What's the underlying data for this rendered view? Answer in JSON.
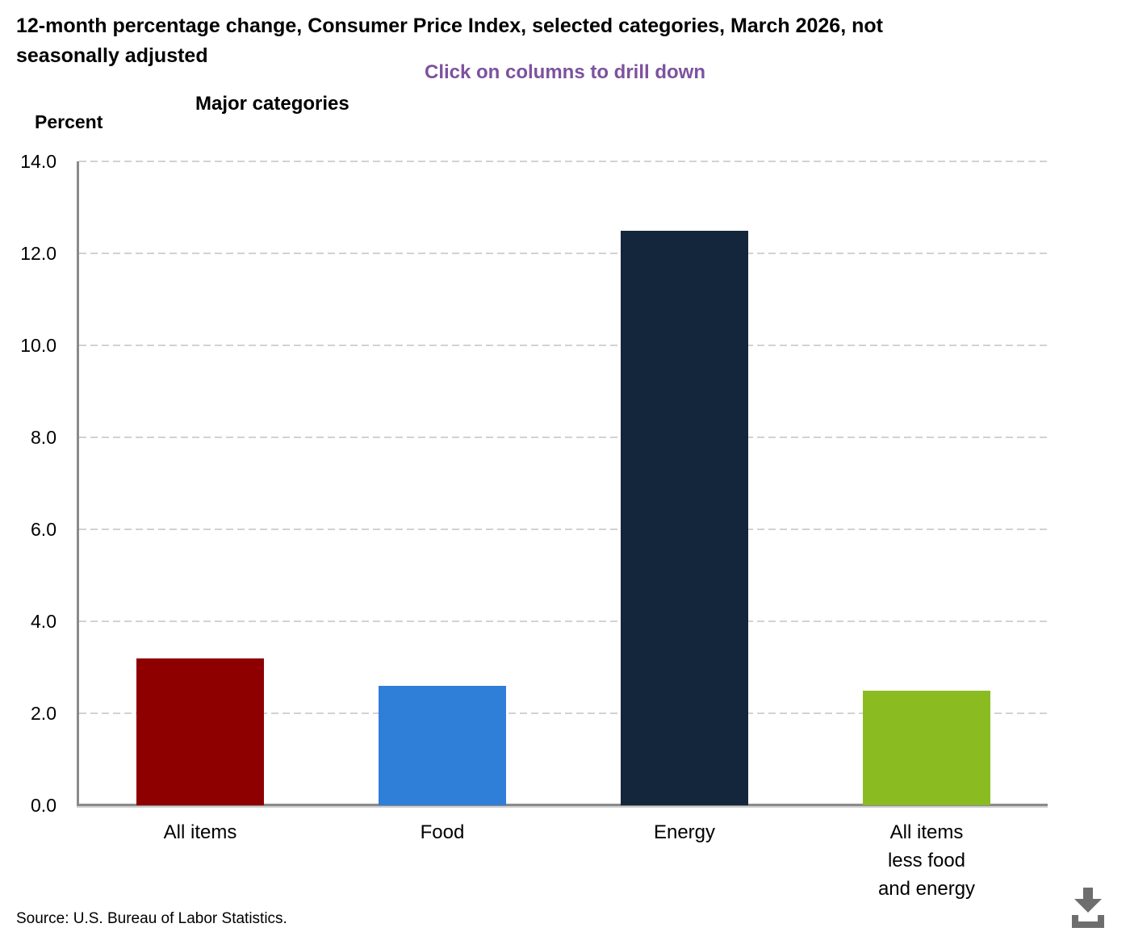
{
  "header": {
    "title_line1": "12-month percentage change, Consumer Price Index, selected categories, March 2026, not",
    "title_line2": "seasonally adjusted",
    "subtitle": "Click on columns to drill down",
    "group_title": "Major categories",
    "yaxis_title": "Percent"
  },
  "footer": {
    "source": "Source: U.S. Bureau of Labor Statistics."
  },
  "icons": {
    "download": "download-arrow-into-tray"
  },
  "colors": {
    "subtitle_text": "#7d529e",
    "axis_line": "#8a8a8a",
    "gridline": "#d2d2d2",
    "download_icon": "#6e6e6e"
  },
  "chart_data": {
    "type": "bar",
    "title": "12-month percentage change, Consumer Price Index, selected categories, March 2026, not seasonally adjusted",
    "subtitle": "Click on columns to drill down",
    "group_label": "Major categories",
    "ylabel": "Percent",
    "xlabel": "",
    "categories": [
      "All items",
      "Food",
      "Energy",
      "All items less food and energy"
    ],
    "category_label_lines": [
      [
        "All items"
      ],
      [
        "Food"
      ],
      [
        "Energy"
      ],
      [
        "All items",
        "less food",
        "and energy"
      ]
    ],
    "values": [
      3.2,
      2.6,
      12.5,
      2.5
    ],
    "bar_colors": [
      "#8e0000",
      "#2f7ed8",
      "#13263c",
      "#8abc22"
    ],
    "ylim": [
      0,
      14
    ],
    "yticks": [
      "0.0",
      "2.0",
      "4.0",
      "6.0",
      "8.0",
      "10.0",
      "12.0",
      "14.0"
    ],
    "grid": "horizontal-dashed",
    "legend": "none",
    "interaction_hint": "columns are clickable for drilldown",
    "source": "Source: U.S. Bureau of Labor Statistics."
  }
}
